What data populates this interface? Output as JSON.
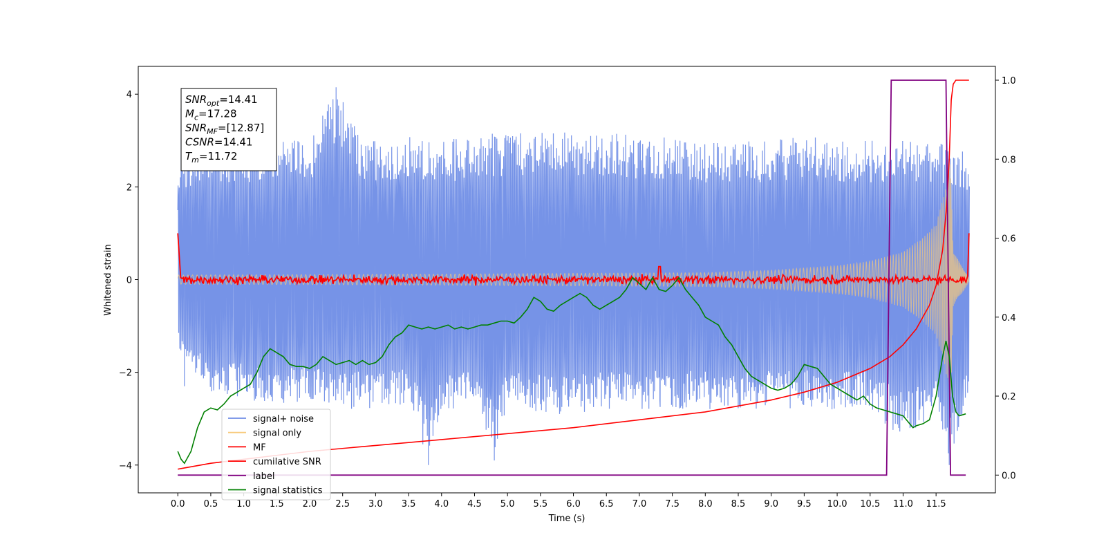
{
  "chart_data": {
    "type": "line",
    "xlabel": "Time (s)",
    "ylabel": "Whitened strain",
    "xlim": [
      -0.6,
      12.4
    ],
    "ylim": [
      -4.6,
      4.6
    ],
    "ylim_right": [
      -0.045,
      1.035
    ],
    "x_ticks": [
      "0.0",
      "0.5",
      "1.0",
      "1.5",
      "2.0",
      "2.5",
      "3.0",
      "3.5",
      "4.0",
      "4.5",
      "5.0",
      "5.5",
      "6.0",
      "6.5",
      "7.0",
      "7.5",
      "8.0",
      "8.5",
      "9.0",
      "9.5",
      "10.0",
      "10.5",
      "11.0",
      "11.5"
    ],
    "y_ticks_left": [
      "4",
      "2",
      "0",
      "−2",
      "−4"
    ],
    "y_ticks_right": [
      "1.0",
      "0.8",
      "0.6",
      "0.4",
      "0.2",
      "0.0"
    ],
    "grid": false,
    "legend_position": "lower-left",
    "annotation": [
      {
        "name": "SNR",
        "sub": "opt",
        "value": "=14.41"
      },
      {
        "name": "M",
        "sub": "c",
        "value": "=17.28"
      },
      {
        "name": "SNR",
        "sub": "MF",
        "value": "=[12.87]"
      },
      {
        "name": "CSNR",
        "sub": "",
        "value": "=14.41"
      },
      {
        "name": "T",
        "sub": "m",
        "value": "=11.72"
      }
    ],
    "series": [
      {
        "name": "signal+ noise",
        "color": "#6f8de6",
        "axis": "left",
        "description": "dense whitened strain noise, roughly gaussian around 0.25, extremes about +4.2 / -4.0",
        "envelope_upper": [
          [
            0,
            2.7
          ],
          [
            0.5,
            2.9
          ],
          [
            1.0,
            2.9
          ],
          [
            1.5,
            3.0
          ],
          [
            2.0,
            3.0
          ],
          [
            2.4,
            4.15
          ],
          [
            2.8,
            3.0
          ],
          [
            3.5,
            3.1
          ],
          [
            4.0,
            3.0
          ],
          [
            4.5,
            3.1
          ],
          [
            5.0,
            3.2
          ],
          [
            5.5,
            3.2
          ],
          [
            6.0,
            3.2
          ],
          [
            6.5,
            3.2
          ],
          [
            7.0,
            3.1
          ],
          [
            7.5,
            3.1
          ],
          [
            8.0,
            3.0
          ],
          [
            8.5,
            3.0
          ],
          [
            9.0,
            3.0
          ],
          [
            9.5,
            3.1
          ],
          [
            10.0,
            3.0
          ],
          [
            10.5,
            3.0
          ],
          [
            11.0,
            3.0
          ],
          [
            11.5,
            3.0
          ],
          [
            12.0,
            2.7
          ]
        ],
        "envelope_lower": [
          [
            0,
            -1.5
          ],
          [
            0.5,
            -2.5
          ],
          [
            1.0,
            -2.6
          ],
          [
            1.5,
            -2.7
          ],
          [
            2.0,
            -2.7
          ],
          [
            2.5,
            -2.8
          ],
          [
            3.0,
            -2.8
          ],
          [
            3.5,
            -2.7
          ],
          [
            3.8,
            -4.0
          ],
          [
            4.0,
            -2.8
          ],
          [
            4.5,
            -2.8
          ],
          [
            4.8,
            -3.9
          ],
          [
            5.0,
            -2.8
          ],
          [
            5.5,
            -2.9
          ],
          [
            6.0,
            -2.9
          ],
          [
            6.5,
            -2.8
          ],
          [
            7.0,
            -2.8
          ],
          [
            7.5,
            -2.8
          ],
          [
            8.0,
            -2.8
          ],
          [
            8.5,
            -2.8
          ],
          [
            9.0,
            -2.8
          ],
          [
            9.5,
            -2.8
          ],
          [
            10.0,
            -2.8
          ],
          [
            10.5,
            -2.8
          ],
          [
            11.0,
            -3.5
          ],
          [
            11.5,
            -3.0
          ],
          [
            11.7,
            -4.0
          ],
          [
            12.0,
            -2.5
          ]
        ]
      },
      {
        "name": "signal only",
        "color": "#f7c97a",
        "axis": "left",
        "description": "chirp oscillation about 0, amplitude growing toward merger at about 11.72 s",
        "amplitude_envelope": [
          [
            0,
            0.1
          ],
          [
            4,
            0.12
          ],
          [
            8,
            0.15
          ],
          [
            9,
            0.2
          ],
          [
            10,
            0.3
          ],
          [
            10.5,
            0.4
          ],
          [
            11.0,
            0.6
          ],
          [
            11.3,
            0.9
          ],
          [
            11.5,
            1.2
          ],
          [
            11.65,
            2.0
          ],
          [
            11.72,
            2.7
          ],
          [
            11.76,
            0.6
          ],
          [
            12.0,
            0.05
          ]
        ]
      },
      {
        "name": "MF",
        "color": "#ff0000",
        "axis": "left",
        "description": "matched-filter output, noisy around 0 with amplitude about 0.15, starts at 1.0 and jumps to 1.0 at end",
        "points": [
          [
            0,
            1.0
          ],
          [
            0.03,
            0.1
          ],
          [
            1,
            0.0
          ],
          [
            2,
            0.0
          ],
          [
            3,
            0.0
          ],
          [
            4,
            0.0
          ],
          [
            5,
            0.0
          ],
          [
            6,
            0.0
          ],
          [
            7,
            0.0
          ],
          [
            7.3,
            0.28
          ],
          [
            8,
            0.0
          ],
          [
            9,
            0.0
          ],
          [
            10,
            0.0
          ],
          [
            11,
            0.0
          ],
          [
            11.98,
            0.0
          ],
          [
            12.0,
            1.0
          ]
        ]
      },
      {
        "name": "cumilative SNR",
        "color": "#ff0000",
        "axis": "right",
        "points": [
          [
            0,
            0.015
          ],
          [
            0.5,
            0.03
          ],
          [
            1.0,
            0.04
          ],
          [
            2.0,
            0.06
          ],
          [
            3.0,
            0.075
          ],
          [
            4.0,
            0.09
          ],
          [
            5.0,
            0.105
          ],
          [
            6.0,
            0.12
          ],
          [
            7.0,
            0.14
          ],
          [
            8.0,
            0.16
          ],
          [
            8.5,
            0.175
          ],
          [
            9.0,
            0.19
          ],
          [
            9.5,
            0.21
          ],
          [
            10.0,
            0.235
          ],
          [
            10.5,
            0.27
          ],
          [
            10.8,
            0.3
          ],
          [
            11.0,
            0.33
          ],
          [
            11.2,
            0.37
          ],
          [
            11.4,
            0.43
          ],
          [
            11.5,
            0.48
          ],
          [
            11.6,
            0.57
          ],
          [
            11.66,
            0.68
          ],
          [
            11.7,
            0.8
          ],
          [
            11.73,
            0.95
          ],
          [
            11.76,
            0.99
          ],
          [
            11.8,
            1.0
          ],
          [
            12.0,
            1.0
          ]
        ]
      },
      {
        "name": "label",
        "color": "#800080",
        "axis": "right",
        "points": [
          [
            0,
            0.0
          ],
          [
            10.75,
            0.0
          ],
          [
            10.82,
            1.0
          ],
          [
            11.65,
            1.0
          ],
          [
            11.72,
            0.0
          ],
          [
            11.95,
            0.0
          ]
        ]
      },
      {
        "name": "signal statistics",
        "color": "#008000",
        "axis": "right",
        "points": [
          [
            0,
            0.06
          ],
          [
            0.05,
            0.04
          ],
          [
            0.1,
            0.03
          ],
          [
            0.2,
            0.06
          ],
          [
            0.3,
            0.12
          ],
          [
            0.4,
            0.16
          ],
          [
            0.5,
            0.17
          ],
          [
            0.6,
            0.165
          ],
          [
            0.7,
            0.18
          ],
          [
            0.8,
            0.2
          ],
          [
            0.9,
            0.21
          ],
          [
            1.0,
            0.22
          ],
          [
            1.1,
            0.23
          ],
          [
            1.2,
            0.26
          ],
          [
            1.3,
            0.3
          ],
          [
            1.4,
            0.32
          ],
          [
            1.5,
            0.31
          ],
          [
            1.6,
            0.3
          ],
          [
            1.7,
            0.28
          ],
          [
            1.8,
            0.275
          ],
          [
            1.9,
            0.275
          ],
          [
            2.0,
            0.27
          ],
          [
            2.1,
            0.28
          ],
          [
            2.2,
            0.3
          ],
          [
            2.3,
            0.29
          ],
          [
            2.4,
            0.28
          ],
          [
            2.5,
            0.285
          ],
          [
            2.6,
            0.29
          ],
          [
            2.7,
            0.28
          ],
          [
            2.8,
            0.29
          ],
          [
            2.9,
            0.28
          ],
          [
            3.0,
            0.285
          ],
          [
            3.1,
            0.3
          ],
          [
            3.2,
            0.33
          ],
          [
            3.3,
            0.35
          ],
          [
            3.4,
            0.36
          ],
          [
            3.5,
            0.38
          ],
          [
            3.6,
            0.375
          ],
          [
            3.7,
            0.37
          ],
          [
            3.8,
            0.375
          ],
          [
            3.9,
            0.37
          ],
          [
            4.0,
            0.375
          ],
          [
            4.1,
            0.38
          ],
          [
            4.2,
            0.37
          ],
          [
            4.3,
            0.375
          ],
          [
            4.4,
            0.37
          ],
          [
            4.5,
            0.375
          ],
          [
            4.6,
            0.38
          ],
          [
            4.7,
            0.38
          ],
          [
            4.8,
            0.385
          ],
          [
            4.9,
            0.39
          ],
          [
            5.0,
            0.39
          ],
          [
            5.1,
            0.385
          ],
          [
            5.2,
            0.4
          ],
          [
            5.3,
            0.42
          ],
          [
            5.4,
            0.45
          ],
          [
            5.5,
            0.44
          ],
          [
            5.6,
            0.42
          ],
          [
            5.7,
            0.415
          ],
          [
            5.8,
            0.43
          ],
          [
            5.9,
            0.44
          ],
          [
            6.0,
            0.45
          ],
          [
            6.1,
            0.46
          ],
          [
            6.2,
            0.45
          ],
          [
            6.3,
            0.43
          ],
          [
            6.4,
            0.42
          ],
          [
            6.5,
            0.43
          ],
          [
            6.6,
            0.44
          ],
          [
            6.7,
            0.45
          ],
          [
            6.8,
            0.47
          ],
          [
            6.9,
            0.5
          ],
          [
            7.0,
            0.485
          ],
          [
            7.1,
            0.47
          ],
          [
            7.2,
            0.5
          ],
          [
            7.3,
            0.47
          ],
          [
            7.4,
            0.465
          ],
          [
            7.5,
            0.48
          ],
          [
            7.6,
            0.5
          ],
          [
            7.7,
            0.47
          ],
          [
            7.8,
            0.45
          ],
          [
            7.9,
            0.43
          ],
          [
            8.0,
            0.4
          ],
          [
            8.1,
            0.39
          ],
          [
            8.2,
            0.38
          ],
          [
            8.3,
            0.35
          ],
          [
            8.4,
            0.33
          ],
          [
            8.5,
            0.3
          ],
          [
            8.6,
            0.27
          ],
          [
            8.7,
            0.25
          ],
          [
            8.8,
            0.24
          ],
          [
            8.9,
            0.23
          ],
          [
            9.0,
            0.22
          ],
          [
            9.1,
            0.215
          ],
          [
            9.2,
            0.22
          ],
          [
            9.3,
            0.23
          ],
          [
            9.4,
            0.25
          ],
          [
            9.5,
            0.28
          ],
          [
            9.6,
            0.275
          ],
          [
            9.7,
            0.27
          ],
          [
            9.8,
            0.25
          ],
          [
            9.9,
            0.23
          ],
          [
            10.0,
            0.22
          ],
          [
            10.1,
            0.21
          ],
          [
            10.2,
            0.2
          ],
          [
            10.3,
            0.19
          ],
          [
            10.4,
            0.2
          ],
          [
            10.5,
            0.18
          ],
          [
            10.6,
            0.17
          ],
          [
            10.7,
            0.165
          ],
          [
            10.8,
            0.16
          ],
          [
            10.9,
            0.155
          ],
          [
            11.0,
            0.15
          ],
          [
            11.05,
            0.14
          ],
          [
            11.1,
            0.13
          ],
          [
            11.15,
            0.12
          ],
          [
            11.2,
            0.125
          ],
          [
            11.3,
            0.13
          ],
          [
            11.4,
            0.14
          ],
          [
            11.5,
            0.2
          ],
          [
            11.6,
            0.3
          ],
          [
            11.65,
            0.34
          ],
          [
            11.7,
            0.3
          ],
          [
            11.75,
            0.2
          ],
          [
            11.8,
            0.16
          ],
          [
            11.85,
            0.15
          ],
          [
            11.95,
            0.155
          ]
        ]
      }
    ]
  }
}
